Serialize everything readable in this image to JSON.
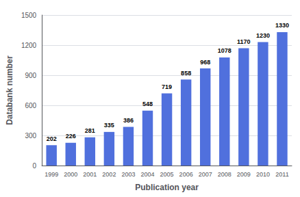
{
  "chart_data": {
    "type": "bar",
    "xlabel": "Publication year",
    "ylabel": "Databank number",
    "categories": [
      "1999",
      "2000",
      "2001",
      "2002",
      "2003",
      "2004",
      "2005",
      "2006",
      "2007",
      "2008",
      "2009",
      "2010",
      "2011"
    ],
    "values": [
      202,
      226,
      281,
      335,
      386,
      548,
      719,
      858,
      968,
      1078,
      1170,
      1230,
      1330
    ],
    "ylim": [
      0,
      1500
    ],
    "yticks": [
      0,
      300,
      600,
      900,
      1200,
      1500
    ],
    "grid": true,
    "data_labels": true
  }
}
